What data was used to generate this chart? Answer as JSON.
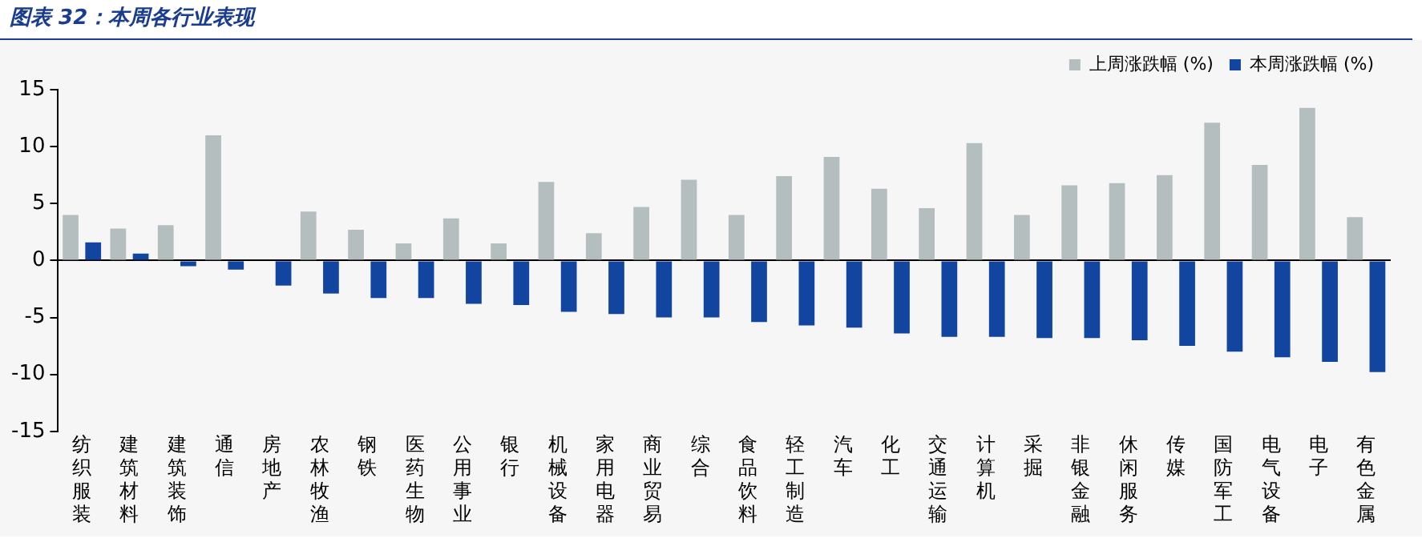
{
  "chart_data": {
    "type": "bar",
    "title": "图表 32：本周各行业表现",
    "categories": [
      "纺织服装",
      "建筑材料",
      "建筑装饰",
      "通信",
      "房地产",
      "农林牧渔",
      "钢铁",
      "医药生物",
      "公用事业",
      "银行",
      "机械设备",
      "家用电器",
      "商业贸易",
      "综合",
      "食品饮料",
      "轻工制造",
      "汽车",
      "化工",
      "交通运输",
      "计算机",
      "采掘",
      "非银金融",
      "休闲服务",
      "传媒",
      "国防军工",
      "电气设备",
      "电子",
      "有色金属"
    ],
    "series": [
      {
        "name": "上周涨跌幅 (%)",
        "color": "#b4bebe",
        "values": [
          4.0,
          2.8,
          3.1,
          11.0,
          null,
          4.3,
          2.7,
          1.5,
          3.7,
          1.5,
          6.9,
          2.4,
          4.7,
          7.1,
          4.0,
          7.4,
          9.1,
          6.3,
          4.6,
          10.3,
          4.0,
          6.6,
          6.8,
          7.5,
          12.1,
          8.4,
          13.4,
          3.8
        ]
      },
      {
        "name": "本周涨跌幅 (%)",
        "color": "#1245a0",
        "values": [
          1.6,
          0.6,
          -0.5,
          -0.8,
          -2.2,
          -2.9,
          -3.3,
          -3.3,
          -3.8,
          -3.9,
          -4.5,
          -4.7,
          -5.0,
          -5.0,
          -5.4,
          -5.7,
          -5.9,
          -6.4,
          -6.7,
          -6.7,
          -6.8,
          -6.8,
          -7.0,
          -7.5,
          -8.0,
          -8.5,
          -8.9,
          -9.8
        ]
      }
    ],
    "ylim": [
      -15,
      15
    ],
    "yticks": [
      -15,
      -10,
      -5,
      0,
      5,
      10,
      15
    ],
    "legend": "top right"
  }
}
